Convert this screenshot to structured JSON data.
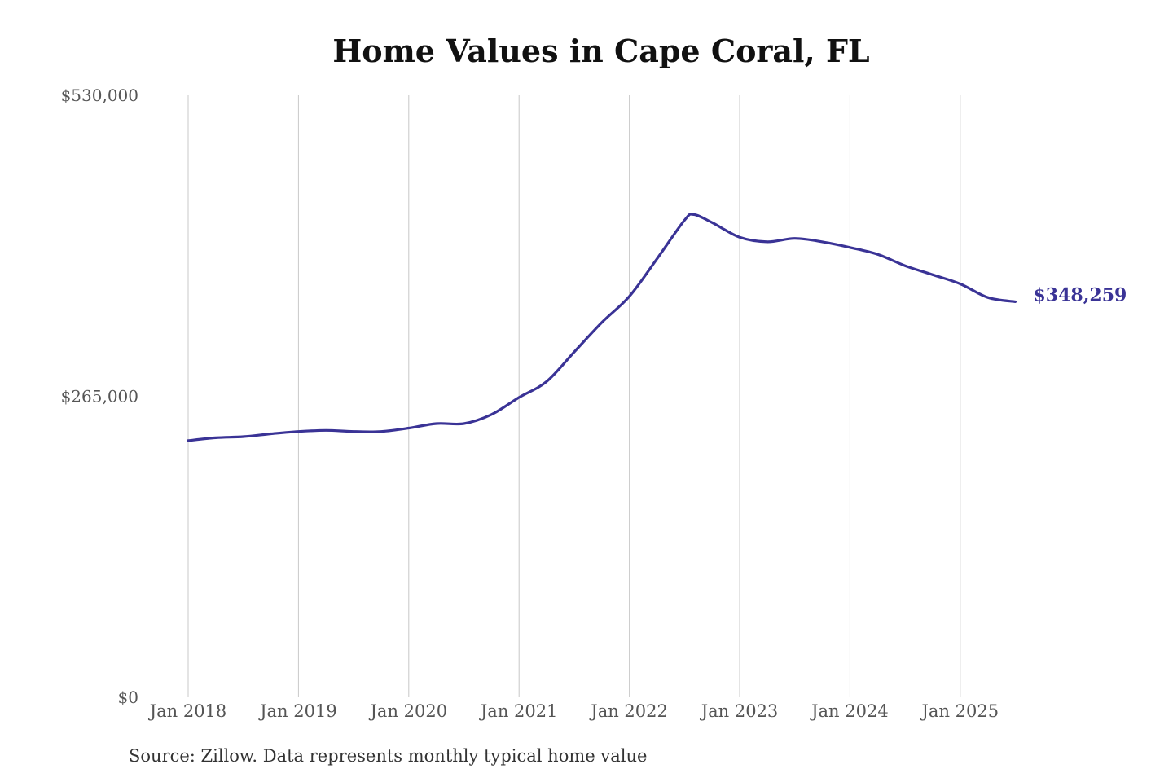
{
  "chart_data": {
    "type": "line",
    "title": "Home Values in Cape Coral, FL",
    "xlabel": "",
    "ylabel": "",
    "ylim": [
      0,
      530000
    ],
    "yticks": [
      {
        "value": 0,
        "label": "$0"
      },
      {
        "value": 265000,
        "label": "$265,000"
      },
      {
        "value": 530000,
        "label": "$530,000"
      }
    ],
    "xticks": [
      {
        "year": 2018,
        "label": "Jan 2018"
      },
      {
        "year": 2019,
        "label": "Jan 2019"
      },
      {
        "year": 2020,
        "label": "Jan 2020"
      },
      {
        "year": 2021,
        "label": "Jan 2021"
      },
      {
        "year": 2022,
        "label": "Jan 2022"
      },
      {
        "year": 2023,
        "label": "Jan 2023"
      },
      {
        "year": 2024,
        "label": "Jan 2024"
      },
      {
        "year": 2025,
        "label": "Jan 2025"
      }
    ],
    "grid": "vertical",
    "line_color": "#3a3396",
    "series": [
      {
        "points": [
          [
            "2018-01",
            226000
          ],
          [
            "2018-04",
            228500
          ],
          [
            "2018-07",
            229500
          ],
          [
            "2018-10",
            232000
          ],
          [
            "2019-01",
            234000
          ],
          [
            "2019-04",
            235000
          ],
          [
            "2019-07",
            234000
          ],
          [
            "2019-10",
            234000
          ],
          [
            "2020-01",
            237000
          ],
          [
            "2020-04",
            241000
          ],
          [
            "2020-07",
            241000
          ],
          [
            "2020-10",
            249000
          ],
          [
            "2021-01",
            264000
          ],
          [
            "2021-04",
            278000
          ],
          [
            "2021-07",
            304000
          ],
          [
            "2021-10",
            330000
          ],
          [
            "2022-01",
            353000
          ],
          [
            "2022-04",
            386000
          ],
          [
            "2022-07",
            420000
          ],
          [
            "2022-08",
            425000
          ],
          [
            "2022-10",
            418000
          ],
          [
            "2023-01",
            405000
          ],
          [
            "2023-04",
            401000
          ],
          [
            "2023-07",
            404000
          ],
          [
            "2023-10",
            401000
          ],
          [
            "2024-01",
            396000
          ],
          [
            "2024-04",
            390000
          ],
          [
            "2024-07",
            380000
          ],
          [
            "2024-10",
            372000
          ],
          [
            "2025-01",
            364000
          ],
          [
            "2025-04",
            352000
          ],
          [
            "2025-07",
            348259
          ]
        ]
      }
    ],
    "end_label": "$348,259",
    "annotations": [
      "$348,259"
    ]
  },
  "footer": {
    "source": "Source: Zillow. Data represents monthly typical home value"
  }
}
